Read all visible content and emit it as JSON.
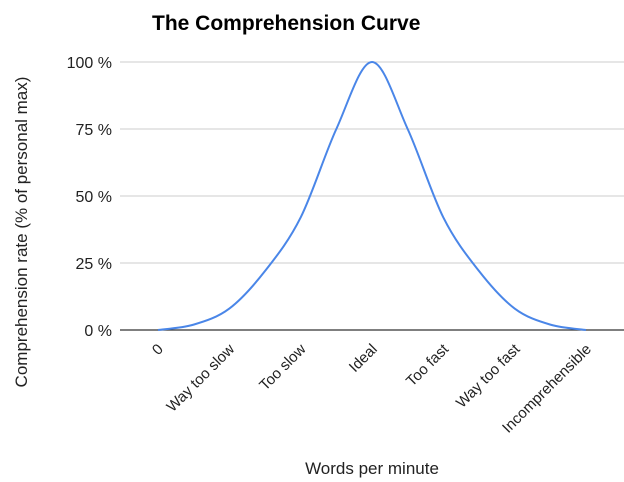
{
  "chart_data": {
    "type": "line",
    "title": "The Comprehension Curve",
    "xlabel": "Words per minute",
    "ylabel": "Comprehension rate (% of personal max)",
    "categories": [
      "0",
      "Way too slow",
      "Too slow",
      "Ideal",
      "Too fast",
      "Way too fast",
      "Incomprehensible"
    ],
    "y_ticks": [
      "0 %",
      "25 %",
      "50 %",
      "75 %",
      "100 %"
    ],
    "ylim": [
      0,
      100
    ],
    "grid": true,
    "line_color": "#4a86e8",
    "series": [
      {
        "x": [
          0,
          0.5,
          1,
          1.5,
          2,
          2.5,
          3,
          3.5,
          4,
          4.5,
          5,
          5.5,
          6
        ],
        "values": [
          0,
          2,
          8,
          22,
          42,
          75,
          100,
          75,
          42,
          22,
          8,
          2,
          0
        ]
      }
    ]
  }
}
